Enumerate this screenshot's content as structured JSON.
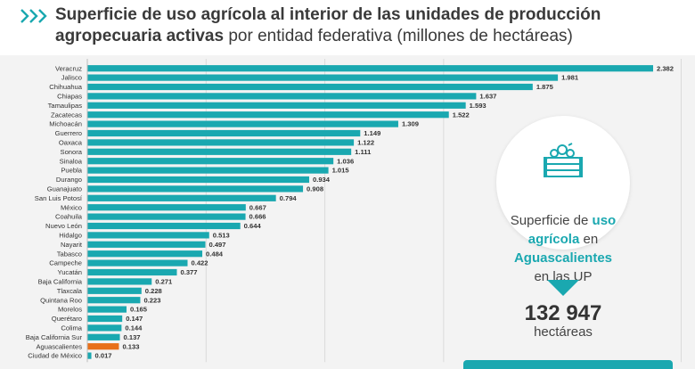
{
  "header": {
    "title_bold_1": "Superficie de uso agrícola al interior de las unidades de producción agropecuaria activas",
    "title_regular": "por entidad federativa (millones de hectáreas)"
  },
  "colors": {
    "bar": "#1aa8b0",
    "highlight": "#e8701a",
    "accent": "#1aa8b0"
  },
  "callout": {
    "line1": "Superficie de",
    "hl1": "uso agrícola",
    "mid": "en",
    "hl2": "Aguascalientes",
    "end": "en las UP",
    "value": "132 947",
    "unit": "hectáreas"
  },
  "chart_data": {
    "type": "bar",
    "orientation": "horizontal",
    "title": "Superficie de uso agrícola al interior de las unidades de producción agropecuaria activas por entidad federativa (millones de hectáreas)",
    "categories": [
      "Veracruz",
      "Jalisco",
      "Chihuahua",
      "Chiapas",
      "Tamaulipas",
      "Zacatecas",
      "Michoacán",
      "Guerrero",
      "Oaxaca",
      "Sonora",
      "Sinaloa",
      "Puebla",
      "Durango",
      "Guanajuato",
      "San Luis Potosí",
      "México",
      "Coahuila",
      "Nuevo León",
      "Hidalgo",
      "Nayarit",
      "Tabasco",
      "Campeche",
      "Yucatán",
      "Baja California",
      "Tlaxcala",
      "Quintana Roo",
      "Morelos",
      "Querétaro",
      "Colima",
      "Baja California Sur",
      "Aguascalientes",
      "Ciudad de México"
    ],
    "values": [
      2.382,
      1.981,
      1.875,
      1.637,
      1.593,
      1.522,
      1.309,
      1.149,
      1.122,
      1.111,
      1.036,
      1.015,
      0.934,
      0.908,
      0.794,
      0.667,
      0.666,
      0.644,
      0.513,
      0.497,
      0.484,
      0.422,
      0.377,
      0.271,
      0.228,
      0.223,
      0.165,
      0.147,
      0.144,
      0.137,
      0.133,
      0.017
    ],
    "labels": [
      "2.382",
      "1.981",
      "1.875",
      "1.637",
      "1.593",
      "1.522",
      "1.309",
      "1.149",
      "1.122",
      "1.111",
      "1.036",
      "1.015",
      "0.934",
      "0.908",
      "0.794",
      "0.667",
      "0.666",
      "0.644",
      "0.513",
      "0.497",
      "0.484",
      "0.422",
      "0.377",
      "0.271",
      "0.228",
      "0.223",
      "0.165",
      "0.147",
      "0.144",
      "0.137",
      "0.133",
      "0.017"
    ],
    "highlight": "Aguascalientes",
    "xlim": [
      0,
      2.5
    ],
    "grid": true
  }
}
